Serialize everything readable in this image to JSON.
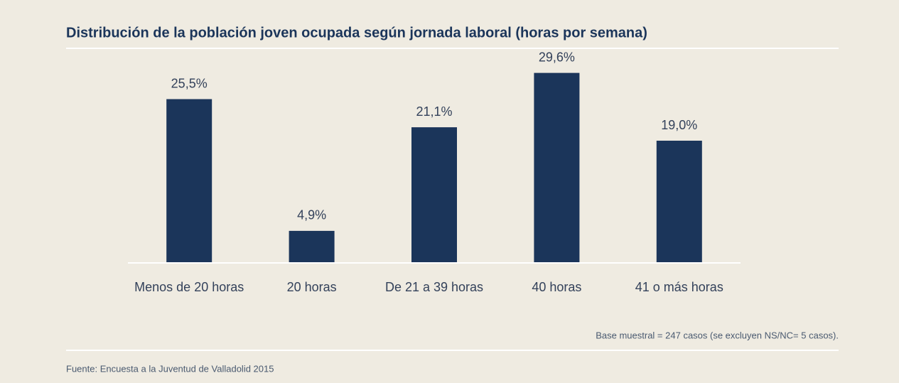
{
  "chart_data": {
    "type": "bar",
    "title": "Distribución de la población joven ocupada según jornada laboral (horas por semana)",
    "categories": [
      "Menos de 20 horas",
      "20 horas",
      "De 21 a 39 horas",
      "40 horas",
      "41 o más horas"
    ],
    "values": [
      25.5,
      4.9,
      21.1,
      29.6,
      19.0
    ],
    "value_labels": [
      "25,5%",
      "4,9%",
      "21,1%",
      "29,6%",
      "19,0%"
    ],
    "color": "#1b355a",
    "note": "Base muestral = 247 casos (se excluyen NS/NC= 5 casos).",
    "source": "Fuente: Encuesta a la Juventud de Valladolid 2015"
  }
}
